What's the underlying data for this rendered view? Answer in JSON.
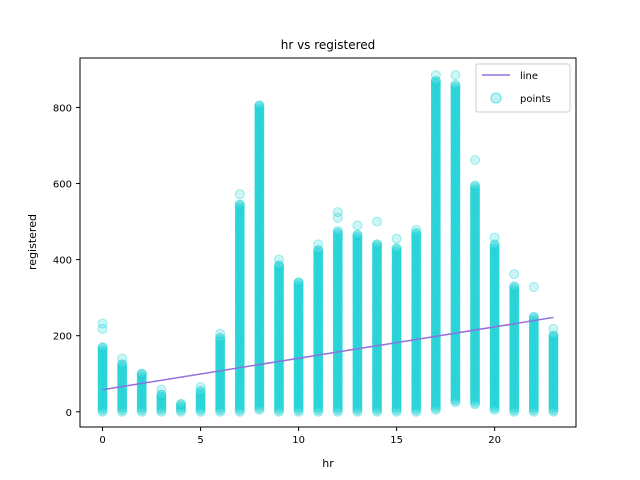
{
  "chart_data": {
    "type": "scatter",
    "title": "hr vs registered",
    "xlabel": "hr",
    "ylabel": "registered",
    "xlim": [
      -1.15,
      24.15
    ],
    "ylim": [
      -40,
      930
    ],
    "xticks": [
      0,
      5,
      10,
      15,
      20
    ],
    "yticks": [
      0,
      200,
      400,
      600,
      800
    ],
    "legend": {
      "position": "upper-right",
      "entries": [
        "line",
        "points"
      ]
    },
    "colors": {
      "points": "#00ced1",
      "line": "#9370db"
    },
    "line": {
      "name": "line",
      "x": [
        0,
        23
      ],
      "y": [
        58,
        248
      ]
    },
    "points_ranges": [
      {
        "x": 0,
        "min": 0,
        "max": 170,
        "outliers": [
          218,
          232
        ]
      },
      {
        "x": 1,
        "min": 0,
        "max": 125,
        "outliers": [
          140
        ]
      },
      {
        "x": 2,
        "min": 0,
        "max": 100,
        "outliers": []
      },
      {
        "x": 3,
        "min": 0,
        "max": 45,
        "outliers": [
          58
        ]
      },
      {
        "x": 4,
        "min": 0,
        "max": 20,
        "outliers": []
      },
      {
        "x": 5,
        "min": 0,
        "max": 55,
        "outliers": [
          65
        ]
      },
      {
        "x": 6,
        "min": 0,
        "max": 195,
        "outliers": [
          205
        ]
      },
      {
        "x": 7,
        "min": 0,
        "max": 545,
        "outliers": [
          572
        ]
      },
      {
        "x": 8,
        "min": 5,
        "max": 805,
        "outliers": []
      },
      {
        "x": 9,
        "min": 0,
        "max": 385,
        "outliers": [
          400
        ]
      },
      {
        "x": 10,
        "min": 0,
        "max": 340,
        "outliers": []
      },
      {
        "x": 11,
        "min": 0,
        "max": 425,
        "outliers": [
          440
        ]
      },
      {
        "x": 12,
        "min": 0,
        "max": 475,
        "outliers": [
          510,
          525
        ]
      },
      {
        "x": 13,
        "min": 0,
        "max": 465,
        "outliers": [
          490
        ]
      },
      {
        "x": 14,
        "min": 0,
        "max": 440,
        "outliers": [
          500
        ]
      },
      {
        "x": 15,
        "min": 0,
        "max": 430,
        "outliers": [
          455
        ]
      },
      {
        "x": 16,
        "min": 0,
        "max": 470,
        "outliers": [
          478
        ]
      },
      {
        "x": 17,
        "min": 5,
        "max": 870,
        "outliers": [
          885
        ]
      },
      {
        "x": 18,
        "min": 25,
        "max": 860,
        "outliers": [
          885
        ]
      },
      {
        "x": 19,
        "min": 20,
        "max": 595,
        "outliers": [
          662
        ]
      },
      {
        "x": 20,
        "min": 5,
        "max": 440,
        "outliers": [
          458
        ]
      },
      {
        "x": 21,
        "min": 0,
        "max": 330,
        "outliers": [
          362
        ]
      },
      {
        "x": 22,
        "min": 0,
        "max": 250,
        "outliers": [
          328
        ]
      },
      {
        "x": 23,
        "min": 0,
        "max": 200,
        "outliers": [
          218
        ]
      }
    ]
  }
}
